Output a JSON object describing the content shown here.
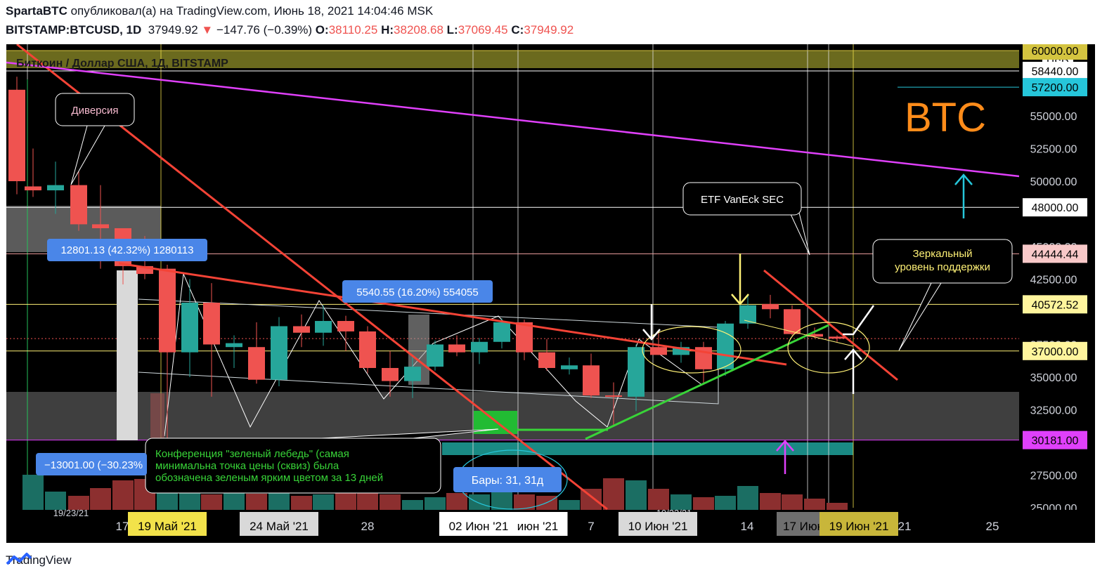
{
  "header": {
    "author": "SpartaBTC",
    "published_text": "опубликовал(а) на TradingView.com, Июнь 18, 2021 14:04:46 MSK",
    "symbol": "BITSTAMP:BTCUSD, 1D",
    "last": "37949.92",
    "change_arrow": "▼",
    "change": "−147.76 (−0.39%)",
    "o_label": "O:",
    "o": "38110.25",
    "h_label": "H:",
    "h": "38208.68",
    "l_label": "L:",
    "l": "37069.45",
    "c_label": "C:",
    "c": "37949.92"
  },
  "footer": {
    "brand": "TradingView"
  },
  "chart_data": {
    "type": "candlestick",
    "title": "Биткоин / Доллар США, 1Д, BITSTAMP",
    "currency": "USD",
    "ylim": [
      24500,
      61200
    ],
    "y_ticks": [
      "25000.00",
      "27500.00",
      "32500.00",
      "35000.00",
      "37500.00",
      "42500.00",
      "45000.00",
      "50000.00",
      "52500.00",
      "55000.00"
    ],
    "price_labels": [
      {
        "value": 60000,
        "text": "60000.00",
        "bg": "#d4c440",
        "fg": "#000000"
      },
      {
        "value": 58440,
        "text": "58440.00",
        "bg": "#ffffff",
        "fg": "#000000"
      },
      {
        "value": 57200,
        "text": "57200.00",
        "bg": "#26c6da",
        "fg": "#000000"
      },
      {
        "value": 48000,
        "text": "48000.00",
        "bg": "#ffffff",
        "fg": "#000000"
      },
      {
        "value": 44444.44,
        "text": "44444.44",
        "bg": "#f8c8c8",
        "fg": "#000000"
      },
      {
        "value": 40572.52,
        "text": "40572.52",
        "bg": "#fff59d",
        "fg": "#000000"
      },
      {
        "value": 37000,
        "text": "37000.00",
        "bg": "#fff59d",
        "fg": "#000000"
      },
      {
        "value": 30181,
        "text": "30181.00",
        "bg": "#e040fb",
        "fg": "#000000"
      }
    ],
    "x_labels": [
      {
        "text": "17",
        "x": 165,
        "style": "plain"
      },
      {
        "text": "19 Май '21",
        "x": 229,
        "style": "yellow"
      },
      {
        "text": "24 Май '21",
        "x": 388,
        "style": "gray"
      },
      {
        "text": "28",
        "x": 514,
        "style": "plain"
      },
      {
        "text": "02 Июн '21",
        "x": 672,
        "style": "white"
      },
      {
        "text": "июн '21",
        "x": 756,
        "style": "white"
      },
      {
        "text": "7",
        "x": 832,
        "style": "plain"
      },
      {
        "text": "10 Июн '21",
        "x": 927,
        "style": "gray"
      },
      {
        "text": "14",
        "x": 1054,
        "style": "plain"
      },
      {
        "text": "17 Июн",
        "x": 1134,
        "style": "darkgray"
      },
      {
        "text": "19 Июн '21",
        "x": 1213,
        "style": "olive"
      },
      {
        "text": "21",
        "x": 1278,
        "style": "plain"
      },
      {
        "text": "25",
        "x": 1403,
        "style": "plain"
      }
    ],
    "candles": [
      {
        "x": 15,
        "o": 57000,
        "h": 58000,
        "l": 49000,
        "c": 50000
      },
      {
        "x": 38,
        "o": 49600,
        "h": 52500,
        "l": 48800,
        "c": 49300
      },
      {
        "x": 70,
        "o": 49300,
        "h": 51500,
        "l": 47500,
        "c": 49700
      },
      {
        "x": 103,
        "o": 49700,
        "h": 51000,
        "l": 46200,
        "c": 46700
      },
      {
        "x": 134,
        "o": 46700,
        "h": 49700,
        "l": 43300,
        "c": 46400
      },
      {
        "x": 166,
        "o": 46400,
        "h": 46400,
        "l": 42100,
        "c": 43500
      },
      {
        "x": 197,
        "o": 43500,
        "h": 45800,
        "l": 42500,
        "c": 42900
      },
      {
        "x": 229,
        "o": 43300,
        "h": 43600,
        "l": 30200,
        "c": 36900
      },
      {
        "x": 261,
        "o": 36900,
        "h": 42500,
        "l": 35000,
        "c": 40700
      },
      {
        "x": 292,
        "o": 40700,
        "h": 42200,
        "l": 33500,
        "c": 37500
      },
      {
        "x": 324,
        "o": 37300,
        "h": 38200,
        "l": 35700,
        "c": 37600
      },
      {
        "x": 356,
        "o": 37300,
        "h": 39200,
        "l": 34500,
        "c": 34800
      },
      {
        "x": 388,
        "o": 34800,
        "h": 39600,
        "l": 34300,
        "c": 38900
      },
      {
        "x": 420,
        "o": 38900,
        "h": 39800,
        "l": 37300,
        "c": 38400
      },
      {
        "x": 451,
        "o": 38400,
        "h": 40500,
        "l": 37400,
        "c": 39300
      },
      {
        "x": 483,
        "o": 39300,
        "h": 39700,
        "l": 37000,
        "c": 38500
      },
      {
        "x": 514,
        "o": 38500,
        "h": 38900,
        "l": 35300,
        "c": 35700
      },
      {
        "x": 546,
        "o": 35700,
        "h": 37000,
        "l": 33500,
        "c": 34700
      },
      {
        "x": 578,
        "o": 34700,
        "h": 36600,
        "l": 33400,
        "c": 35800
      },
      {
        "x": 610,
        "o": 35800,
        "h": 37800,
        "l": 35500,
        "c": 37500
      },
      {
        "x": 641,
        "o": 37500,
        "h": 38200,
        "l": 36600,
        "c": 36900
      },
      {
        "x": 673,
        "o": 36900,
        "h": 38000,
        "l": 36000,
        "c": 37700
      },
      {
        "x": 705,
        "o": 37700,
        "h": 39500,
        "l": 37200,
        "c": 39200
      },
      {
        "x": 737,
        "o": 39200,
        "h": 39400,
        "l": 36300,
        "c": 36900
      },
      {
        "x": 769,
        "o": 36900,
        "h": 37900,
        "l": 35500,
        "c": 35700
      },
      {
        "x": 801,
        "o": 35600,
        "h": 36500,
        "l": 35200,
        "c": 35900
      },
      {
        "x": 832,
        "o": 35900,
        "h": 36800,
        "l": 33400,
        "c": 33600
      },
      {
        "x": 864,
        "o": 33600,
        "h": 34600,
        "l": 31200,
        "c": 33500
      },
      {
        "x": 896,
        "o": 33500,
        "h": 37500,
        "l": 32400,
        "c": 37300
      },
      {
        "x": 928,
        "o": 37300,
        "h": 38500,
        "l": 36700,
        "c": 36700
      },
      {
        "x": 960,
        "o": 36700,
        "h": 37700,
        "l": 36100,
        "c": 37300
      },
      {
        "x": 992,
        "o": 37300,
        "h": 37700,
        "l": 34400,
        "c": 35600
      },
      {
        "x": 1023,
        "o": 35600,
        "h": 39300,
        "l": 35100,
        "c": 39100
      },
      {
        "x": 1055,
        "o": 39100,
        "h": 41300,
        "l": 38700,
        "c": 40500
      },
      {
        "x": 1087,
        "o": 40600,
        "h": 41300,
        "l": 39500,
        "c": 40200
      },
      {
        "x": 1118,
        "o": 40200,
        "h": 40500,
        "l": 38200,
        "c": 38300
      },
      {
        "x": 1150,
        "o": 38300,
        "h": 38800,
        "l": 38000,
        "c": 38100
      },
      {
        "x": 1182,
        "o": 38100,
        "h": 38200,
        "l": 37700,
        "c": 37950
      }
    ],
    "volume": [
      {
        "x": 38,
        "v": 50,
        "up": true
      },
      {
        "x": 70,
        "v": 26,
        "up": true
      },
      {
        "x": 103,
        "v": 20,
        "up": false
      },
      {
        "x": 134,
        "v": 31,
        "up": false
      },
      {
        "x": 166,
        "v": 42,
        "up": false
      },
      {
        "x": 197,
        "v": 44,
        "up": false
      },
      {
        "x": 229,
        "v": 55,
        "up": true
      },
      {
        "x": 261,
        "v": 28,
        "up": true
      },
      {
        "x": 292,
        "v": 22,
        "up": false
      },
      {
        "x": 324,
        "v": 25,
        "up": true
      },
      {
        "x": 356,
        "v": 23,
        "up": false
      },
      {
        "x": 388,
        "v": 28,
        "up": true
      },
      {
        "x": 420,
        "v": 20,
        "up": false
      },
      {
        "x": 451,
        "v": 22,
        "up": true
      },
      {
        "x": 483,
        "v": 26,
        "up": false
      },
      {
        "x": 514,
        "v": 27,
        "up": false
      },
      {
        "x": 546,
        "v": 22,
        "up": false
      },
      {
        "x": 578,
        "v": 14,
        "up": true
      },
      {
        "x": 610,
        "v": 18,
        "up": true
      },
      {
        "x": 641,
        "v": 24,
        "up": false
      },
      {
        "x": 673,
        "v": 22,
        "up": true
      },
      {
        "x": 705,
        "v": 25,
        "up": true
      },
      {
        "x": 737,
        "v": 22,
        "up": false
      },
      {
        "x": 769,
        "v": 20,
        "up": false
      },
      {
        "x": 801,
        "v": 14,
        "up": true
      },
      {
        "x": 832,
        "v": 30,
        "up": false
      },
      {
        "x": 864,
        "v": 45,
        "up": false
      },
      {
        "x": 896,
        "v": 42,
        "up": true
      },
      {
        "x": 928,
        "v": 30,
        "up": false
      },
      {
        "x": 960,
        "v": 22,
        "up": true
      },
      {
        "x": 992,
        "v": 18,
        "up": false
      },
      {
        "x": 1023,
        "v": 20,
        "up": true
      },
      {
        "x": 1055,
        "v": 34,
        "up": true
      },
      {
        "x": 1087,
        "v": 24,
        "up": false
      },
      {
        "x": 1118,
        "v": 22,
        "up": false
      },
      {
        "x": 1150,
        "v": 16,
        "up": false
      },
      {
        "x": 1182,
        "v": 10,
        "up": false
      }
    ],
    "annotations": {
      "diversion": "Диверсия",
      "etf": "ETF VanEck  SEC",
      "mirror_line1": "Зеркальный",
      "mirror_line2": "уровень поддержки",
      "measure1": "12801.13 (42.32%) 1280113",
      "measure2": "5540.55 (16.20%) 554055",
      "measure3": "−13001.00 (−30.23%",
      "bars": "Бары: 31, 31д",
      "conf_line1": "Конференция \"зеленый лебедь\" (самая",
      "conf_line2": "минимальна точка цены (сквиз) была",
      "conf_line3": "обозначена зеленым ярким цветом за 13 дней",
      "big_label": "BTC",
      "cut_date_1": "19/23/21",
      "cut_date_2": "10/23/21"
    },
    "colors": {
      "up": "#26a69a",
      "down": "#ef5350",
      "up_vol": "#1b6e63",
      "down_vol": "#8c2f2f"
    }
  }
}
